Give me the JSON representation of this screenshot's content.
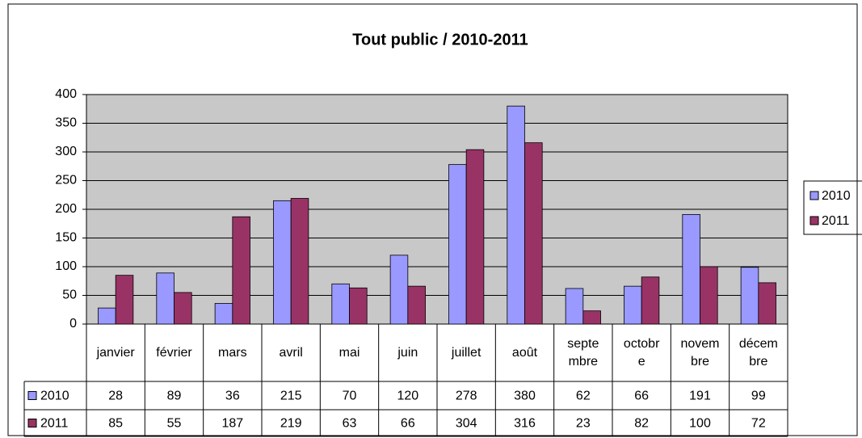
{
  "chart_data": {
    "type": "bar",
    "title": "Tout public / 2010-2011",
    "categories": [
      "janvier",
      "février",
      "mars",
      "avril",
      "mai",
      "juin",
      "juillet",
      "août",
      "septembre",
      "octobre",
      "novembre",
      "décembre"
    ],
    "series": [
      {
        "name": "2010",
        "color": "#9999ff",
        "values": [
          28,
          89,
          36,
          215,
          70,
          120,
          278,
          380,
          62,
          66,
          191,
          99
        ]
      },
      {
        "name": "2011",
        "color": "#993366",
        "values": [
          85,
          55,
          187,
          219,
          63,
          66,
          304,
          316,
          23,
          82,
          100,
          72
        ]
      }
    ],
    "ylim": [
      0,
      400
    ],
    "yticks": [
      0,
      50,
      100,
      150,
      200,
      250,
      300,
      350,
      400
    ],
    "grid": true,
    "legend": "right"
  }
}
